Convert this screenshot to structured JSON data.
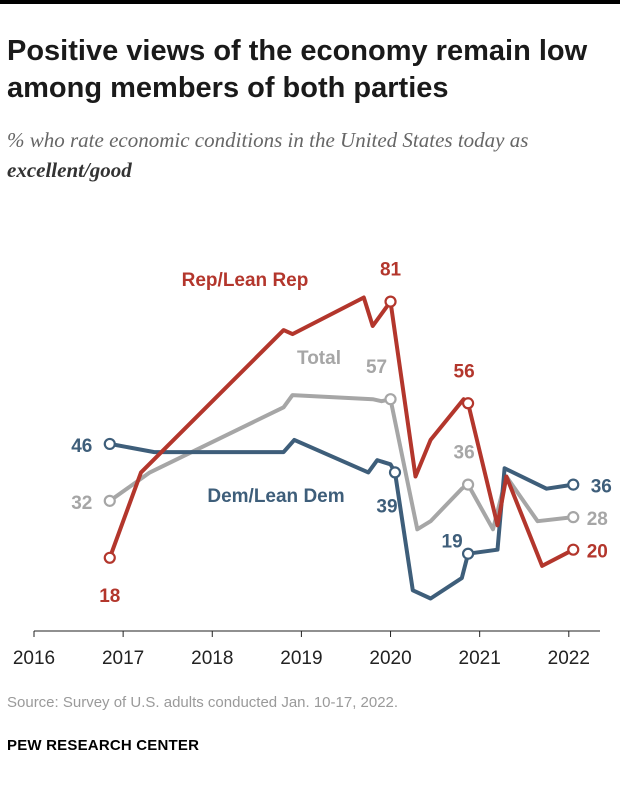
{
  "title": "Positive views of the economy remain low among members of both parties",
  "subtitle_prefix": "% who rate economic conditions in the United States today as ",
  "subtitle_emphasis": "excellent/good",
  "source": "Source: Survey of U.S. adults conducted Jan. 10-17, 2022.",
  "organization": "PEW RESEARCH CENTER",
  "chart_data": {
    "type": "line",
    "title": "Positive views of the economy remain low among members of both parties",
    "xlabel": "",
    "ylabel": "% who rate economic conditions as excellent/good",
    "xlim": [
      2016,
      2022.35
    ],
    "ylim": [
      0,
      90
    ],
    "x_ticks": [
      2016,
      2017,
      2018,
      2019,
      2020,
      2021,
      2022
    ],
    "x_tick_labels": [
      "2016",
      "2017",
      "2018",
      "2019",
      "2020",
      "2021",
      "2022"
    ],
    "grid": false,
    "series": [
      {
        "name": "Total",
        "label": "Total",
        "color": "#a6a6a6",
        "points": [
          [
            2016.85,
            32
          ],
          [
            2017.3,
            39
          ],
          [
            2018.8,
            55
          ],
          [
            2018.9,
            58
          ],
          [
            2019.8,
            57
          ],
          [
            2019.9,
            56.5
          ],
          [
            2020.0,
            57
          ],
          [
            2020.3,
            25
          ],
          [
            2020.45,
            27
          ],
          [
            2020.8,
            35
          ],
          [
            2020.87,
            36
          ],
          [
            2021.15,
            25
          ],
          [
            2021.3,
            38
          ],
          [
            2021.65,
            27
          ],
          [
            2022.05,
            28
          ]
        ],
        "labeled": [
          {
            "index": 0,
            "text": "32"
          },
          {
            "index": 6,
            "text": "57"
          },
          {
            "index": 10,
            "text": "36"
          },
          {
            "index": 14,
            "text": "28"
          }
        ]
      },
      {
        "name": "Dem/Lean Dem",
        "label": "Dem/Lean Dem",
        "color": "#3e5e7a",
        "points": [
          [
            2016.85,
            46
          ],
          [
            2017.35,
            44
          ],
          [
            2018.8,
            44
          ],
          [
            2018.92,
            47
          ],
          [
            2019.75,
            39
          ],
          [
            2019.85,
            42
          ],
          [
            2020.0,
            41
          ],
          [
            2020.05,
            39
          ],
          [
            2020.25,
            10
          ],
          [
            2020.45,
            8
          ],
          [
            2020.8,
            13
          ],
          [
            2020.87,
            19
          ],
          [
            2021.2,
            20
          ],
          [
            2021.28,
            40
          ],
          [
            2021.75,
            35
          ],
          [
            2022.05,
            36
          ]
        ],
        "labeled": [
          {
            "index": 0,
            "text": "46"
          },
          {
            "index": 7,
            "text": "39"
          },
          {
            "index": 11,
            "text": "19"
          },
          {
            "index": 15,
            "text": "36"
          }
        ]
      },
      {
        "name": "Rep/Lean Rep",
        "label": "Rep/Lean Rep",
        "color": "#b3362c",
        "points": [
          [
            2016.85,
            18
          ],
          [
            2017.2,
            39
          ],
          [
            2018.8,
            74
          ],
          [
            2018.9,
            73
          ],
          [
            2019.7,
            82
          ],
          [
            2019.8,
            75
          ],
          [
            2020.0,
            81
          ],
          [
            2020.28,
            38
          ],
          [
            2020.45,
            47
          ],
          [
            2020.82,
            57
          ],
          [
            2020.87,
            56
          ],
          [
            2021.2,
            26
          ],
          [
            2021.3,
            38
          ],
          [
            2021.7,
            16
          ],
          [
            2022.05,
            20
          ]
        ],
        "labeled": [
          {
            "index": 0,
            "text": "18"
          },
          {
            "index": 6,
            "text": "81"
          },
          {
            "index": 10,
            "text": "56"
          },
          {
            "index": 14,
            "text": "20"
          }
        ]
      }
    ]
  },
  "series_labels": {
    "rep": "Rep/Lean Rep",
    "total": "Total",
    "dem": "Dem/Lean Dem"
  }
}
